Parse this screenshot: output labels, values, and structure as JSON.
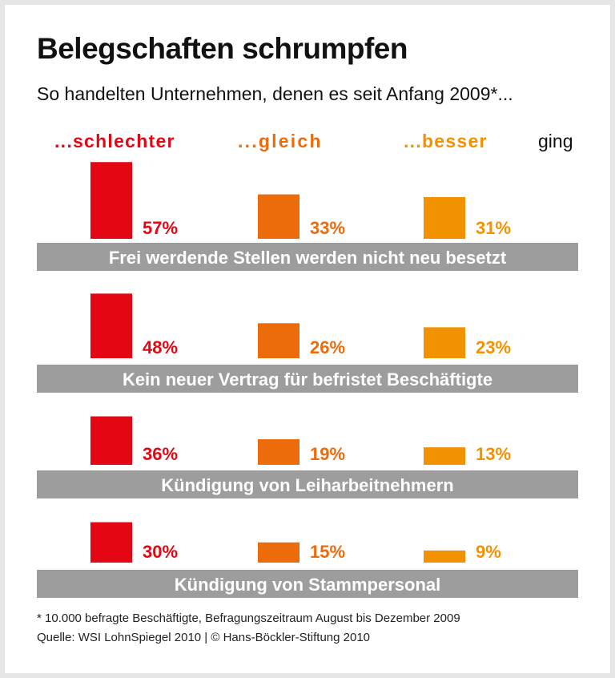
{
  "title": "Belegschaften schrumpfen",
  "subtitle": "So handelten Unternehmen, denen es seit Anfang 2009*...",
  "chart_data": {
    "type": "bar",
    "series": [
      {
        "name": "...schlechter",
        "color": "#e30613",
        "values": [
          57,
          48,
          36,
          30
        ]
      },
      {
        "name": "...gleich",
        "color": "#ec6b0a",
        "values": [
          33,
          26,
          19,
          15
        ]
      },
      {
        "name": "...besser",
        "color": "#f39200",
        "values": [
          31,
          23,
          13,
          9
        ]
      }
    ],
    "legend_suffix": "ging",
    "categories": [
      "Frei werdende Stellen werden nicht neu besetzt",
      "Kein neuer Vertrag für befristet Beschäftigte",
      "Kündigung von Leiharbeitnehmern",
      "Kündigung von Stammpersonal"
    ],
    "value_suffix": "%",
    "category_band_color": "#9d9d9d"
  },
  "footnote": "* 10.000 befragte Beschäftigte, Befragungszeitraum August bis Dezember 2009",
  "source": "Quelle: WSI LohnSpiegel 2010 | © Hans-Böckler-Stiftung 2010"
}
